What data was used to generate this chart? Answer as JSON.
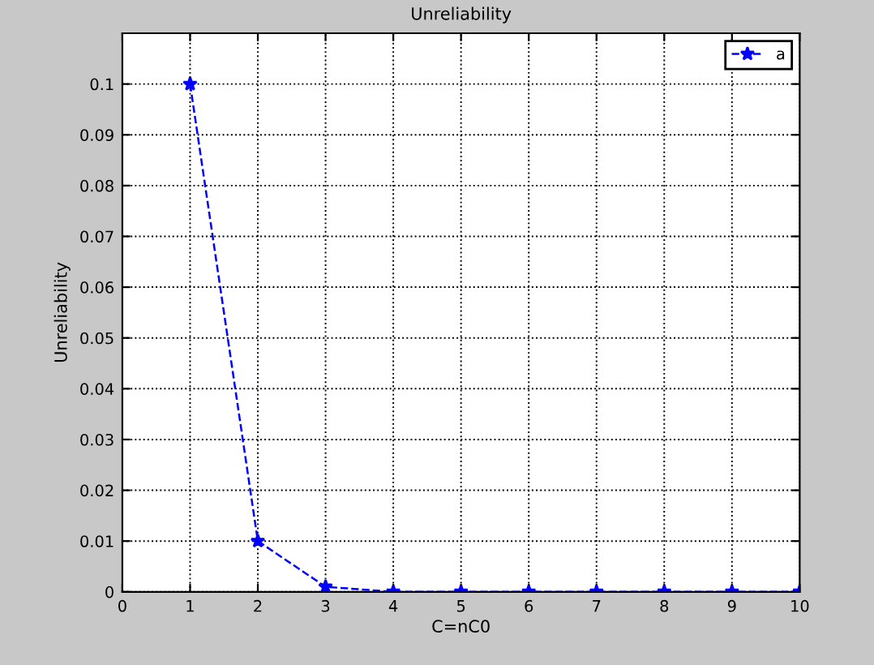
{
  "chart_data": {
    "type": "line",
    "title": "Unreliability",
    "xlabel": "C=nC0",
    "ylabel": "Unreliability",
    "x": [
      1,
      2,
      3,
      4,
      5,
      6,
      7,
      8,
      9,
      10
    ],
    "series": [
      {
        "name": "a",
        "color": "#0000ff",
        "values": [
          0.1,
          0.01,
          0.001,
          0,
          0,
          0,
          0,
          0,
          0,
          0
        ]
      }
    ],
    "xlim": [
      0,
      10
    ],
    "xticks": [
      0,
      1,
      2,
      3,
      4,
      5,
      6,
      7,
      8,
      9,
      10
    ],
    "ylim": [
      0,
      0.11
    ],
    "yticks": [
      0,
      0.01,
      0.02,
      0.03,
      0.04,
      0.05,
      0.06,
      0.07,
      0.08,
      0.09,
      0.1
    ],
    "grid": true,
    "legend": "top right",
    "marker": "star",
    "line_style": "dashed"
  }
}
